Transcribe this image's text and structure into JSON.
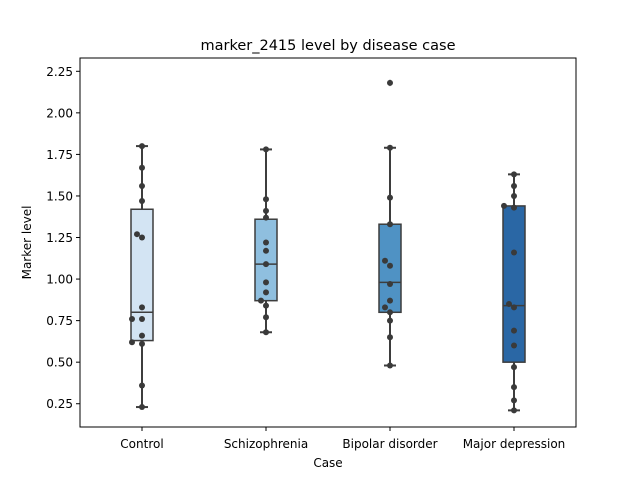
{
  "chart_data": {
    "type": "box",
    "title": "marker_2415 level by disease case",
    "xlabel": "Case",
    "ylabel": "Marker level",
    "ylim": [
      0.11,
      2.33
    ],
    "yticks": [
      0.25,
      0.5,
      0.75,
      1.0,
      1.25,
      1.5,
      1.75,
      2.0,
      2.25
    ],
    "ytick_labels": [
      "0.25",
      "0.50",
      "0.75",
      "1.00",
      "1.25",
      "1.50",
      "1.75",
      "2.00",
      "2.25"
    ],
    "categories": [
      "Control",
      "Schizophrenia",
      "Bipolar disorder",
      "Major depression"
    ],
    "colors": [
      "#d3e4f3",
      "#8fbfdf",
      "#4f92c4",
      "#2a67a5"
    ],
    "boxes": [
      {
        "category": "Control",
        "whisker_low": 0.23,
        "q1": 0.63,
        "median": 0.8,
        "q3": 1.42,
        "whisker_high": 1.8,
        "fliers": []
      },
      {
        "category": "Schizophrenia",
        "whisker_low": 0.68,
        "q1": 0.87,
        "median": 1.09,
        "q3": 1.36,
        "whisker_high": 1.78,
        "fliers": []
      },
      {
        "category": "Bipolar disorder",
        "whisker_low": 0.48,
        "q1": 0.8,
        "median": 0.98,
        "q3": 1.33,
        "whisker_high": 1.79,
        "fliers": [
          2.18
        ]
      },
      {
        "category": "Major depression",
        "whisker_low": 0.21,
        "q1": 0.5,
        "median": 0.84,
        "q3": 1.44,
        "whisker_high": 1.63,
        "fliers": []
      }
    ],
    "points": [
      {
        "category": "Control",
        "values": [
          1.8,
          1.67,
          1.56,
          1.47,
          1.27,
          1.25,
          0.83,
          0.76,
          0.76,
          0.66,
          0.62,
          0.61,
          0.36,
          0.23
        ]
      },
      {
        "category": "Schizophrenia",
        "values": [
          1.78,
          1.48,
          1.41,
          1.37,
          1.22,
          1.17,
          1.09,
          0.98,
          0.92,
          0.87,
          0.84,
          0.77,
          0.68
        ]
      },
      {
        "category": "Bipolar disorder",
        "values": [
          2.18,
          1.79,
          1.49,
          1.33,
          1.11,
          1.08,
          0.97,
          0.87,
          0.83,
          0.8,
          0.75,
          0.65,
          0.48
        ]
      },
      {
        "category": "Major depression",
        "values": [
          1.63,
          1.56,
          1.5,
          1.44,
          1.43,
          1.16,
          0.85,
          0.83,
          0.69,
          0.6,
          0.47,
          0.35,
          0.27,
          0.21
        ]
      }
    ]
  }
}
